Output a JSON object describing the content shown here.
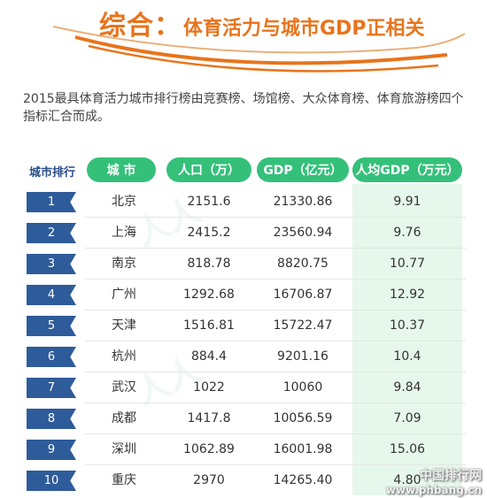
{
  "header": {
    "title_main": "综合：",
    "title_sub": "体育活力与城市GDP正相关"
  },
  "intro_text": "2015最具体育活力城市排行榜由竞赛榜、场馆榜、大众体育榜、体育旅游榜四个指标汇合而成。",
  "table": {
    "headers": {
      "rank": "城市排行",
      "city": "城 市",
      "population": "人口（万）",
      "gdp": "GDP（亿元）",
      "gdp_per_capita": "人均GDP（万元）"
    },
    "rows": [
      {
        "rank": "1",
        "city": "北京",
        "population": "2151.6",
        "gdp": "21330.86",
        "gdp_per_capita": "9.91"
      },
      {
        "rank": "2",
        "city": "上海",
        "population": "2415.2",
        "gdp": "23560.94",
        "gdp_per_capita": "9.76"
      },
      {
        "rank": "3",
        "city": "南京",
        "population": "818.78",
        "gdp": "8820.75",
        "gdp_per_capita": "10.77"
      },
      {
        "rank": "4",
        "city": "广州",
        "population": "1292.68",
        "gdp": "16706.87",
        "gdp_per_capita": "12.92"
      },
      {
        "rank": "5",
        "city": "天津",
        "population": "1516.81",
        "gdp": "15722.47",
        "gdp_per_capita": "10.37"
      },
      {
        "rank": "6",
        "city": "杭州",
        "population": "884.4",
        "gdp": "9201.16",
        "gdp_per_capita": "10.4"
      },
      {
        "rank": "7",
        "city": "武汉",
        "population": "1022",
        "gdp": "10060",
        "gdp_per_capita": "9.84"
      },
      {
        "rank": "8",
        "city": "成都",
        "population": "1417.8",
        "gdp": "10056.59",
        "gdp_per_capita": "7.09"
      },
      {
        "rank": "9",
        "city": "深圳",
        "population": "1062.89",
        "gdp": "16001.98",
        "gdp_per_capita": "15.06"
      },
      {
        "rank": "10",
        "city": "重庆",
        "population": "2970",
        "gdp": "14265.40",
        "gdp_per_capita": "4.80"
      }
    ]
  },
  "watermark": {
    "site_name": "中国排行网",
    "site_url": "www.phbang.cn"
  },
  "colors": {
    "title_orange": "#e8741c",
    "header_green": "#35c07a",
    "rank_blue": "#2e5b9a",
    "gdp_column_tint": "#e6f7ec"
  }
}
